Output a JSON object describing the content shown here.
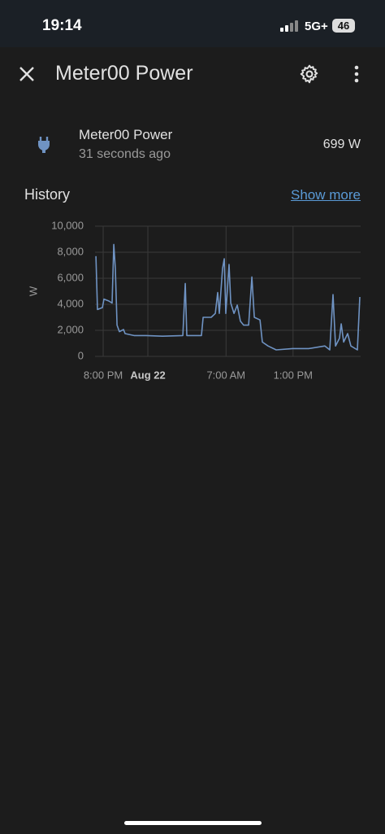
{
  "status_bar": {
    "time": "19:14",
    "network": "5G+",
    "battery": "46"
  },
  "header": {
    "title": "Meter00 Power"
  },
  "entity": {
    "name": "Meter00 Power",
    "last_changed": "31 seconds ago",
    "state": "699 W"
  },
  "history": {
    "title": "History",
    "link": "Show more"
  },
  "chart_data": {
    "type": "line",
    "ylabel": "W",
    "color": "#6f93c3",
    "grid": true,
    "x": [
      19.35,
      19.49,
      19.93,
      20.07,
      20.51,
      20.8,
      20.95,
      21.09,
      21.24,
      21.45,
      21.82,
      21.96,
      22.76,
      23.85,
      25.31,
      27.13,
      27.35,
      27.49,
      28.8,
      28.95,
      29.67,
      30.04,
      30.25,
      30.4,
      30.69,
      30.84,
      30.98,
      31.27,
      31.42,
      31.71,
      32.0,
      32.29,
      32.58,
      33.02,
      33.31,
      33.53,
      34.04,
      34.25,
      34.76,
      35.49,
      36.95,
      38.4,
      39.85,
      40.29,
      40.58,
      40.8,
      41.16,
      41.31,
      41.53,
      41.89,
      42.18,
      42.76,
      42.98
    ],
    "values": [
      7700,
      3600,
      3750,
      4400,
      4250,
      4100,
      8600,
      6750,
      2400,
      1900,
      2060,
      1750,
      1600,
      1600,
      1550,
      1600,
      5600,
      1600,
      1600,
      3000,
      3000,
      3300,
      4900,
      3300,
      6750,
      7500,
      3300,
      7060,
      4100,
      3300,
      3940,
      2700,
      2400,
      2400,
      6100,
      3000,
      2800,
      1100,
      800,
      500,
      600,
      600,
      800,
      500,
      4750,
      800,
      1400,
      2500,
      1100,
      1750,
      800,
      500,
      4560
    ],
    "xlim": [
      19.27,
      43.05
    ],
    "xticks": [
      {
        "value": 20,
        "label": "8:00 PM"
      },
      {
        "value": 24,
        "label": "Aug 22"
      },
      {
        "value": 31,
        "label": "7:00 AM"
      },
      {
        "value": 37,
        "label": "1:00 PM"
      }
    ],
    "ylim": [
      0,
      10000
    ],
    "yticks": [
      0,
      {
        "value": 2000,
        "label": "2,000"
      },
      {
        "value": 4000,
        "label": "4,000"
      },
      {
        "value": 6000,
        "label": "6,000"
      },
      {
        "value": 8000,
        "label": "8,000"
      },
      {
        "value": 10000,
        "label": "10,000"
      }
    ]
  }
}
